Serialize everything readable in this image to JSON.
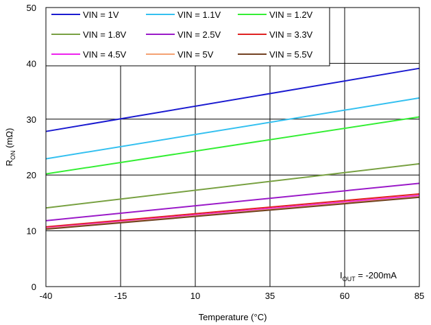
{
  "chart_data": {
    "type": "line",
    "xlabel": "Temperature (°C)",
    "ylabel_main": "R",
    "ylabel_sub": "ON",
    "ylabel_tail": " (mΩ)",
    "xlim": [
      -40,
      85
    ],
    "ylim": [
      0,
      50
    ],
    "x_ticks": [
      -40,
      -15,
      10,
      35,
      60,
      85
    ],
    "y_ticks": [
      0,
      10,
      20,
      30,
      40,
      50
    ],
    "grid": true,
    "legend_position": "top-left",
    "annotation": {
      "main": "I",
      "sub": "OUT",
      "tail": " = -200mA"
    },
    "x": [
      -40,
      85
    ],
    "series": [
      {
        "name": "VIN = 1V",
        "color": "#1a1ad0",
        "values": [
          27.8,
          39.1
        ]
      },
      {
        "name": "VIN = 1.1V",
        "color": "#33c0f0",
        "values": [
          22.9,
          33.8
        ]
      },
      {
        "name": "VIN = 1.2V",
        "color": "#33ee33",
        "values": [
          20.2,
          30.4
        ]
      },
      {
        "name": "VIN = 1.8V",
        "color": "#77a040",
        "values": [
          14.1,
          22.0
        ]
      },
      {
        "name": "VIN = 2.5V",
        "color": "#9a18c8",
        "values": [
          11.8,
          18.5
        ]
      },
      {
        "name": "VIN = 3.3V",
        "color": "#e02020",
        "values": [
          10.7,
          16.6
        ]
      },
      {
        "name": "VIN = 4.5V",
        "color": "#ee20ee",
        "values": [
          10.5,
          16.3
        ]
      },
      {
        "name": "VIN = 5V",
        "color": "#f4a070",
        "values": [
          10.4,
          16.1
        ]
      },
      {
        "name": "VIN = 5.5V",
        "color": "#704020",
        "values": [
          10.3,
          16.0
        ]
      }
    ]
  }
}
